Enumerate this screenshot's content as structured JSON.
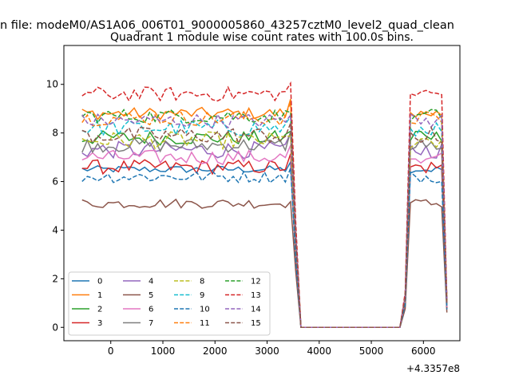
{
  "chart_data": {
    "type": "line",
    "suptitle": "n file: modeM0/AS1A06_006T01_9000005860_43257cztM0_level2_quad_clean",
    "title": "Quadrant 1 module wise count rates with 100.0s bins.",
    "xlabel": "",
    "ylabel": "",
    "x_offset_label": "+4.3357e8",
    "xlim": [
      -900,
      6700
    ],
    "ylim": [
      -0.55,
      11.6
    ],
    "xticks": [
      0,
      1000,
      2000,
      3000,
      4000,
      5000,
      6000
    ],
    "yticks": [
      0,
      2,
      4,
      6,
      8,
      10
    ],
    "x_start": -550,
    "x_step": 100,
    "n_points": 71,
    "legend": {
      "position": "lower-left",
      "columns": 4
    },
    "series": [
      {
        "name": "0",
        "color": "#1f77b4",
        "dash": "solid",
        "level": 6.5,
        "noise": 0.15
      },
      {
        "name": "1",
        "color": "#ff7f0e",
        "dash": "solid",
        "level": 8.8,
        "noise": 0.25
      },
      {
        "name": "2",
        "color": "#2ca02c",
        "dash": "solid",
        "level": 7.8,
        "noise": 0.3
      },
      {
        "name": "3",
        "color": "#d62728",
        "dash": "solid",
        "level": 6.6,
        "noise": 0.3
      },
      {
        "name": "4",
        "color": "#9467bd",
        "dash": "solid",
        "level": 7.3,
        "noise": 0.35
      },
      {
        "name": "5",
        "color": "#8c564b",
        "dash": "solid",
        "level": 5.1,
        "noise": 0.2
      },
      {
        "name": "6",
        "color": "#e377c2",
        "dash": "solid",
        "level": 7.0,
        "noise": 0.3
      },
      {
        "name": "7",
        "color": "#7f7f7f",
        "dash": "solid",
        "level": 7.5,
        "noise": 0.3
      },
      {
        "name": "8",
        "color": "#bcbd22",
        "dash": "dashed",
        "level": 7.7,
        "noise": 0.35
      },
      {
        "name": "9",
        "color": "#17becf",
        "dash": "dashed",
        "level": 8.2,
        "noise": 0.35
      },
      {
        "name": "10",
        "color": "#1f77b4",
        "dash": "dashed",
        "level": 6.2,
        "noise": 0.25
      },
      {
        "name": "11",
        "color": "#ff7f0e",
        "dash": "dashed",
        "level": 8.6,
        "noise": 0.3
      },
      {
        "name": "12",
        "color": "#2ca02c",
        "dash": "dashed",
        "level": 8.7,
        "noise": 0.3
      },
      {
        "name": "13",
        "color": "#d62728",
        "dash": "dashed",
        "level": 9.6,
        "noise": 0.3
      },
      {
        "name": "14",
        "color": "#9467bd",
        "dash": "dashed",
        "level": 8.5,
        "noise": 0.3
      },
      {
        "name": "15",
        "color": "#8c564b",
        "dash": "dashed",
        "level": 7.9,
        "noise": 0.35
      }
    ]
  }
}
